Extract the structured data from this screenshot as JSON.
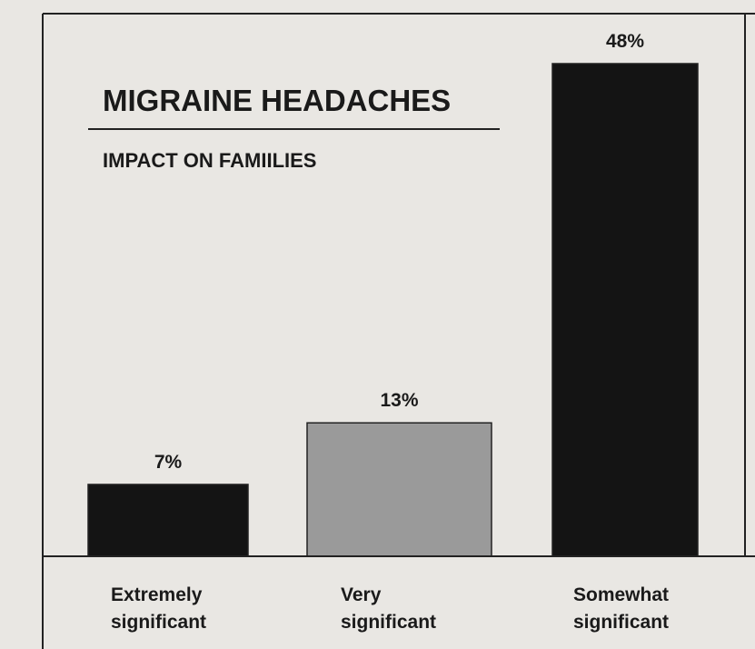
{
  "chart_data": {
    "type": "bar",
    "title": "MIGRAINE HEADACHES",
    "subtitle": "IMPACT ON FAMIILIES",
    "categories": [
      "Extremely significant",
      "Very significant",
      "Somewhat significant"
    ],
    "values": [
      7,
      13,
      48
    ],
    "value_labels": [
      "7%",
      "13%",
      "48%"
    ],
    "colors": [
      "#141414",
      "#9a9a9a",
      "#141414"
    ]
  }
}
